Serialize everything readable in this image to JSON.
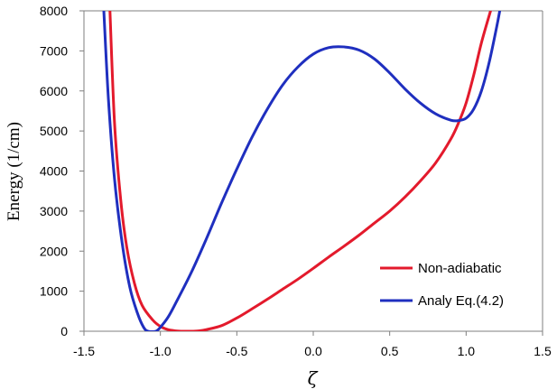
{
  "chart_data": {
    "type": "line",
    "title": "",
    "xlabel": "ζ",
    "ylabel": "Energy (1/cm)",
    "xlim": [
      -1.5,
      1.5
    ],
    "ylim": [
      0,
      8000
    ],
    "xticks": [
      -1.5,
      -1.0,
      -0.5,
      0.0,
      0.5,
      1.0,
      1.5
    ],
    "xtick_labels": [
      "-1.5",
      "-1.0",
      "-0.5",
      "0.0",
      "0.5",
      "1.0",
      "1.5"
    ],
    "yticks": [
      0,
      1000,
      2000,
      3000,
      4000,
      5000,
      6000,
      7000,
      8000
    ],
    "ytick_labels": [
      "0",
      "1000",
      "2000",
      "3000",
      "4000",
      "5000",
      "6000",
      "7000",
      "8000"
    ],
    "grid": false,
    "legend_position": "bottom-right",
    "series": [
      {
        "name": "Non-adiabatic",
        "color": "#e31a2c",
        "points": [
          [
            -1.33,
            8000
          ],
          [
            -1.3,
            5200
          ],
          [
            -1.26,
            3300
          ],
          [
            -1.22,
            2100
          ],
          [
            -1.17,
            1200
          ],
          [
            -1.12,
            650
          ],
          [
            -1.05,
            280
          ],
          [
            -1.0,
            120
          ],
          [
            -0.95,
            40
          ],
          [
            -0.9,
            10
          ],
          [
            -0.85,
            0
          ],
          [
            -0.8,
            0
          ],
          [
            -0.75,
            10
          ],
          [
            -0.7,
            40
          ],
          [
            -0.6,
            140
          ],
          [
            -0.5,
            330
          ],
          [
            -0.4,
            560
          ],
          [
            -0.3,
            800
          ],
          [
            -0.2,
            1050
          ],
          [
            -0.1,
            1300
          ],
          [
            0.0,
            1570
          ],
          [
            0.1,
            1850
          ],
          [
            0.2,
            2120
          ],
          [
            0.3,
            2400
          ],
          [
            0.4,
            2700
          ],
          [
            0.5,
            3000
          ],
          [
            0.6,
            3350
          ],
          [
            0.7,
            3750
          ],
          [
            0.8,
            4200
          ],
          [
            0.9,
            4800
          ],
          [
            0.95,
            5200
          ],
          [
            1.0,
            5700
          ],
          [
            1.05,
            6400
          ],
          [
            1.1,
            7200
          ],
          [
            1.16,
            8000
          ]
        ]
      },
      {
        "name": "Analy Eq.(4.2)",
        "color": "#1f2fbf",
        "points": [
          [
            -1.37,
            8000
          ],
          [
            -1.34,
            5800
          ],
          [
            -1.3,
            3800
          ],
          [
            -1.25,
            2200
          ],
          [
            -1.2,
            1100
          ],
          [
            -1.15,
            450
          ],
          [
            -1.11,
            100
          ],
          [
            -1.08,
            0
          ],
          [
            -1.03,
            0
          ],
          [
            -1.0,
            100
          ],
          [
            -0.95,
            350
          ],
          [
            -0.9,
            700
          ],
          [
            -0.8,
            1450
          ],
          [
            -0.7,
            2300
          ],
          [
            -0.6,
            3200
          ],
          [
            -0.5,
            4050
          ],
          [
            -0.4,
            4850
          ],
          [
            -0.3,
            5550
          ],
          [
            -0.2,
            6150
          ],
          [
            -0.1,
            6600
          ],
          [
            0.0,
            6920
          ],
          [
            0.1,
            7080
          ],
          [
            0.2,
            7100
          ],
          [
            0.3,
            7020
          ],
          [
            0.4,
            6800
          ],
          [
            0.5,
            6450
          ],
          [
            0.6,
            6050
          ],
          [
            0.7,
            5700
          ],
          [
            0.8,
            5430
          ],
          [
            0.9,
            5270
          ],
          [
            0.95,
            5260
          ],
          [
            1.0,
            5320
          ],
          [
            1.05,
            5550
          ],
          [
            1.1,
            6000
          ],
          [
            1.15,
            6700
          ],
          [
            1.2,
            7600
          ],
          [
            1.22,
            8000
          ]
        ]
      }
    ]
  }
}
